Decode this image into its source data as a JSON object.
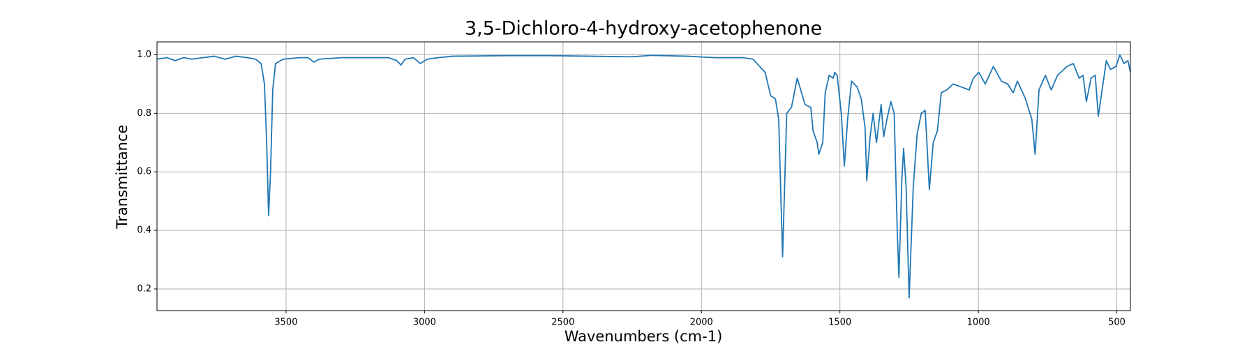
{
  "chart_data": {
    "type": "line",
    "title": "3,5-Dichloro-4-hydroxy-acetophenone",
    "x_label": "Wavenumbers (cm-1)",
    "y_label": "Transmittance",
    "x": [
      3966,
      3930,
      3900,
      3870,
      3840,
      3800,
      3760,
      3720,
      3680,
      3640,
      3610,
      3590,
      3578,
      3570,
      3563,
      3556,
      3548,
      3538,
      3510,
      3450,
      3420,
      3400,
      3380,
      3300,
      3200,
      3130,
      3100,
      3085,
      3070,
      3040,
      3015,
      2990,
      2950,
      2900,
      2700,
      2550,
      2400,
      2250,
      2180,
      2050,
      1950,
      1850,
      1814,
      1770,
      1750,
      1733,
      1721,
      1707,
      1692,
      1675,
      1654,
      1626,
      1605,
      1597,
      1582,
      1576,
      1562,
      1553,
      1539,
      1524,
      1519,
      1510,
      1495,
      1484,
      1472,
      1458,
      1438,
      1423,
      1409,
      1403,
      1391,
      1380,
      1368,
      1351,
      1342,
      1330,
      1316,
      1304,
      1293,
      1287,
      1276,
      1270,
      1261,
      1250,
      1235,
      1221,
      1206,
      1192,
      1177,
      1163,
      1148,
      1134,
      1114,
      1091,
      1062,
      1033,
      1018,
      998,
      975,
      946,
      917,
      894,
      874,
      859,
      830,
      807,
      795,
      781,
      758,
      737,
      714,
      680,
      657,
      636,
      622,
      610,
      593,
      578,
      567,
      550,
      538,
      523,
      503,
      489,
      474,
      460,
      451
    ],
    "values": [
      0.985,
      0.99,
      0.98,
      0.99,
      0.985,
      0.99,
      0.995,
      0.985,
      0.995,
      0.99,
      0.985,
      0.97,
      0.9,
      0.7,
      0.45,
      0.6,
      0.88,
      0.97,
      0.985,
      0.99,
      0.99,
      0.975,
      0.985,
      0.99,
      0.99,
      0.99,
      0.98,
      0.965,
      0.985,
      0.99,
      0.97,
      0.985,
      0.99,
      0.995,
      0.997,
      0.997,
      0.995,
      0.993,
      0.998,
      0.995,
      0.99,
      0.99,
      0.985,
      0.94,
      0.86,
      0.85,
      0.78,
      0.31,
      0.8,
      0.82,
      0.92,
      0.83,
      0.82,
      0.74,
      0.7,
      0.66,
      0.7,
      0.87,
      0.93,
      0.92,
      0.94,
      0.93,
      0.8,
      0.62,
      0.78,
      0.91,
      0.89,
      0.85,
      0.75,
      0.57,
      0.72,
      0.8,
      0.7,
      0.83,
      0.72,
      0.78,
      0.84,
      0.8,
      0.4,
      0.24,
      0.58,
      0.68,
      0.55,
      0.17,
      0.55,
      0.73,
      0.8,
      0.81,
      0.54,
      0.7,
      0.74,
      0.87,
      0.88,
      0.9,
      0.89,
      0.88,
      0.92,
      0.94,
      0.9,
      0.96,
      0.91,
      0.9,
      0.87,
      0.91,
      0.85,
      0.78,
      0.66,
      0.88,
      0.93,
      0.88,
      0.93,
      0.96,
      0.97,
      0.92,
      0.93,
      0.84,
      0.92,
      0.93,
      0.79,
      0.9,
      0.98,
      0.95,
      0.96,
      1.0,
      0.97,
      0.98,
      0.94
    ],
    "color": "#1f77b4",
    "xlim": [
      3966,
      451
    ],
    "ylim": [
      0.126,
      1.044
    ],
    "xticks": [
      3500,
      3000,
      2500,
      2000,
      1500,
      1000,
      500
    ],
    "yticks": [
      0.2,
      0.4,
      0.6,
      0.8,
      {
        "value": 1,
        "label": "1.0"
      }
    ],
    "grid": true
  }
}
